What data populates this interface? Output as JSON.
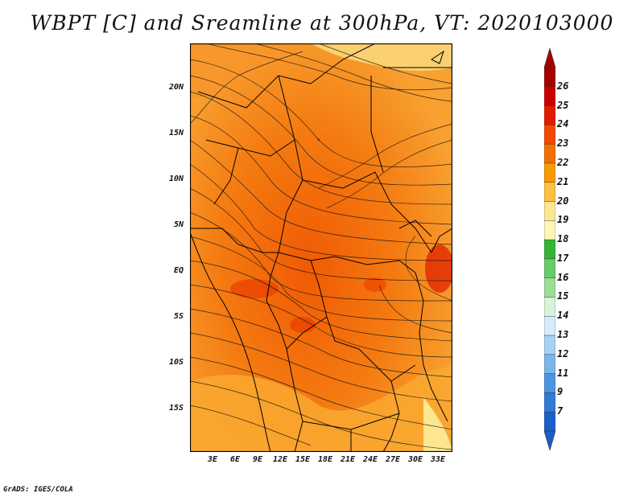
{
  "title": "WBPT [C] and Sreamline at 300hPa, VT: 2020103000",
  "footer": "GrADS: IGES/COLA",
  "map": {
    "lat_ticks": [
      "20N",
      "15N",
      "10N",
      "5N",
      "EQ",
      "5S",
      "10S",
      "15S"
    ],
    "lon_ticks": [
      "3E",
      "6E",
      "9E",
      "12E",
      "15E",
      "18E",
      "21E",
      "24E",
      "27E",
      "30E",
      "33E"
    ],
    "field": "wet-bulb potential temperature",
    "overlay": "streamlines",
    "dominant_range": "21-24"
  },
  "colorbar": {
    "labels": [
      "26",
      "25",
      "24",
      "23",
      "22",
      "21",
      "20",
      "19",
      "18",
      "17",
      "16",
      "15",
      "14",
      "13",
      "12",
      "11",
      "9",
      "7"
    ],
    "colors": [
      "#a50000",
      "#c80000",
      "#e11b00",
      "#f04a00",
      "#f56f00",
      "#f89a00",
      "#fbc040",
      "#fde690",
      "#fff5b8",
      "#33b533",
      "#66cc66",
      "#99dd99",
      "#d9f3d9",
      "#d6ecfb",
      "#a8d2f5",
      "#7ab6ee",
      "#4b95e3",
      "#2f7bd6",
      "#1a60c8"
    ],
    "top_arrow_color": "#a50000",
    "bottom_arrow_color": "#1a60c8"
  }
}
